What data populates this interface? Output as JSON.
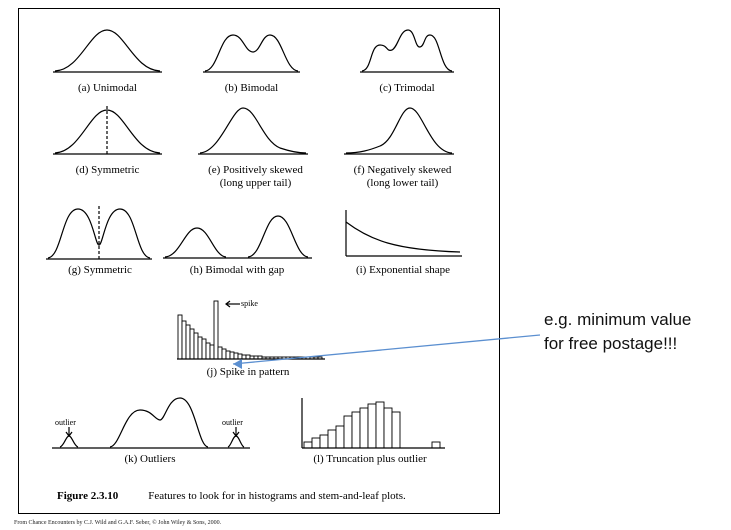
{
  "panels": {
    "a": "(a)  Unimodal",
    "b": "(b)  Bimodal",
    "c": "(c)  Trimodal",
    "d": "(d)  Symmetric",
    "e1": "(e)  Positively skewed",
    "e2": "(long upper tail)",
    "f1": "(f)  Negatively skewed",
    "f2": "(long lower tail)",
    "g": "(g)  Symmetric",
    "h": "(h)  Bimodal with gap",
    "i": "(i)  Exponential shape",
    "j": "(j)  Spike in pattern",
    "k": "(k)  Outliers",
    "l": "(l)  Truncation plus outlier"
  },
  "labels": {
    "spike": "spike",
    "outlier_left": "outlier",
    "outlier_right": "outlier"
  },
  "figure_caption": {
    "number": "Figure 2.3.10",
    "text": "Features to look for in histograms and stem-and-leaf plots."
  },
  "source_line": "From Chance Encounters by C.J. Wild and G.A.F. Seber, © John Wiley & Sons, 2000.",
  "annotation": {
    "line1": "e.g. minimum value",
    "line2": "for free postage!!!",
    "arrow_color": "#5b8fd0"
  }
}
